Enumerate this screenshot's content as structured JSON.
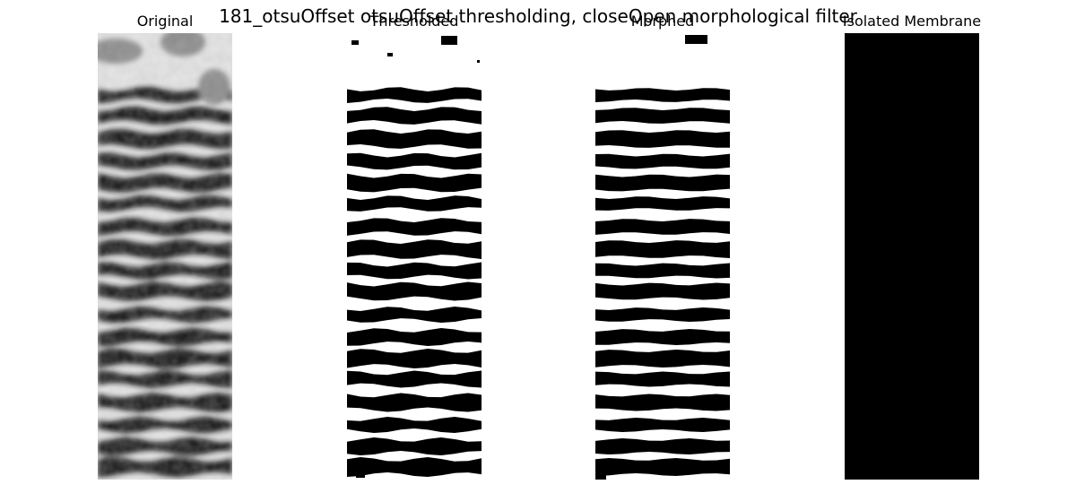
{
  "figure": {
    "title": "181_otsuOffset otsuOffset thresholding, closeOpen morphological filter"
  },
  "panels": [
    {
      "id": "original",
      "title": "Original",
      "kind": "grayscale",
      "image": "striped-membrane-grayscale"
    },
    {
      "id": "thresholded",
      "title": "Thresholded",
      "kind": "binary-noisy",
      "image": "striped-membrane-binary"
    },
    {
      "id": "morphed",
      "title": "Morphed",
      "kind": "binary-clean",
      "image": "striped-membrane-morphed"
    },
    {
      "id": "isolated",
      "title": "Isolated Membrane",
      "kind": "masked-gray",
      "image": "striped-membrane-isolated"
    }
  ],
  "colors": {
    "background": "#ffffff",
    "black": "#000000",
    "white": "#ffffff",
    "gray_light": "#e8e8e8",
    "gray_dark": "#1a1a1a",
    "membrane_gray": "#6a6a6a"
  }
}
